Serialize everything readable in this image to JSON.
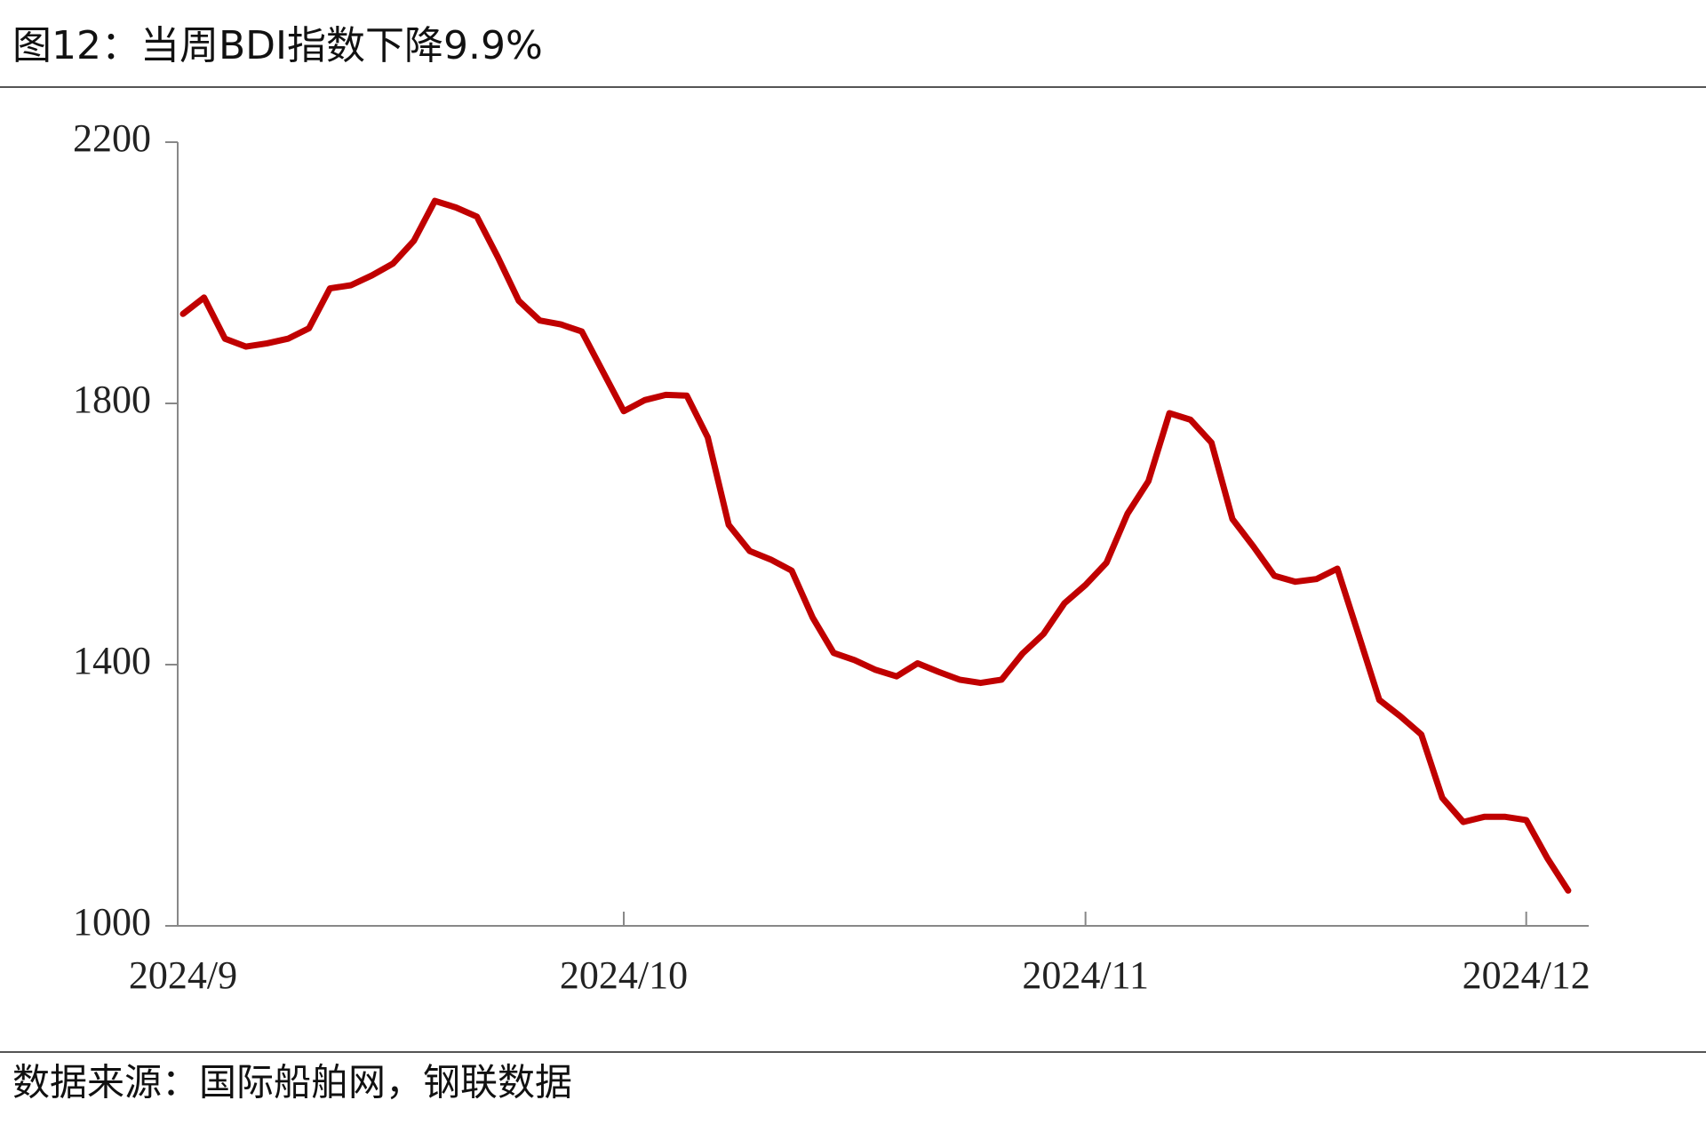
{
  "chart_data": {
    "type": "line",
    "title": "图12：当周BDI指数下降9.9%",
    "source": "数据来源：国际船舶网，钢联数据",
    "categories": [
      "2024/9",
      null,
      null,
      null,
      null,
      null,
      null,
      null,
      null,
      null,
      null,
      null,
      null,
      null,
      null,
      null,
      null,
      null,
      null,
      null,
      null,
      "2024/10",
      null,
      null,
      null,
      null,
      null,
      null,
      null,
      null,
      null,
      null,
      null,
      null,
      null,
      null,
      null,
      null,
      null,
      null,
      null,
      null,
      null,
      "2024/11",
      null,
      null,
      null,
      null,
      null,
      null,
      null,
      null,
      null,
      null,
      null,
      null,
      null,
      null,
      null,
      null,
      null,
      null,
      null,
      null,
      "2024/12",
      null,
      null
    ],
    "series": [
      {
        "name": "BDI",
        "color": "#c00000",
        "values": [
          1937,
          1962,
          1899,
          1887,
          1892,
          1899,
          1915,
          1976,
          1981,
          1996,
          2014,
          2049,
          2110,
          2100,
          2086,
          2024,
          1957,
          1927,
          1921,
          1910,
          1849,
          1788,
          1805,
          1813,
          1812,
          1748,
          1614,
          1574,
          1561,
          1544,
          1472,
          1418,
          1407,
          1392,
          1382,
          1402,
          1389,
          1377,
          1372,
          1377,
          1417,
          1447,
          1494,
          1522,
          1556,
          1631,
          1681,
          1785,
          1775,
          1740,
          1623,
          1581,
          1536,
          1527,
          1531,
          1547,
          1447,
          1346,
          1321,
          1293,
          1196,
          1159,
          1167,
          1167,
          1162,
          1104,
          1054
        ]
      }
    ],
    "ylim": [
      1000,
      2200
    ],
    "yticks": [
      1000,
      1400,
      1800,
      2200
    ]
  }
}
